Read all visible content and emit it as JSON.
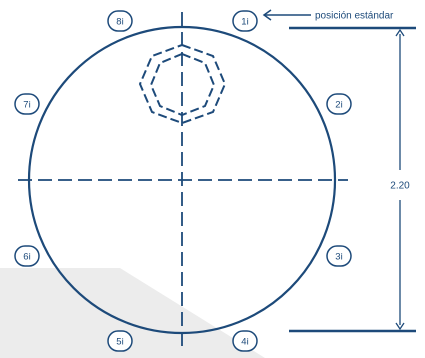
{
  "colors": {
    "stroke": "#1d4a7a",
    "shadow": "#ececec",
    "background": "#ffffff"
  },
  "positions": [
    {
      "label": "1i"
    },
    {
      "label": "2i"
    },
    {
      "label": "3i"
    },
    {
      "label": "4i"
    },
    {
      "label": "5i"
    },
    {
      "label": "6i"
    },
    {
      "label": "7i"
    },
    {
      "label": "8i"
    }
  ],
  "annotation": {
    "text": "posición estándar"
  },
  "dimension": {
    "value": "2.20"
  }
}
